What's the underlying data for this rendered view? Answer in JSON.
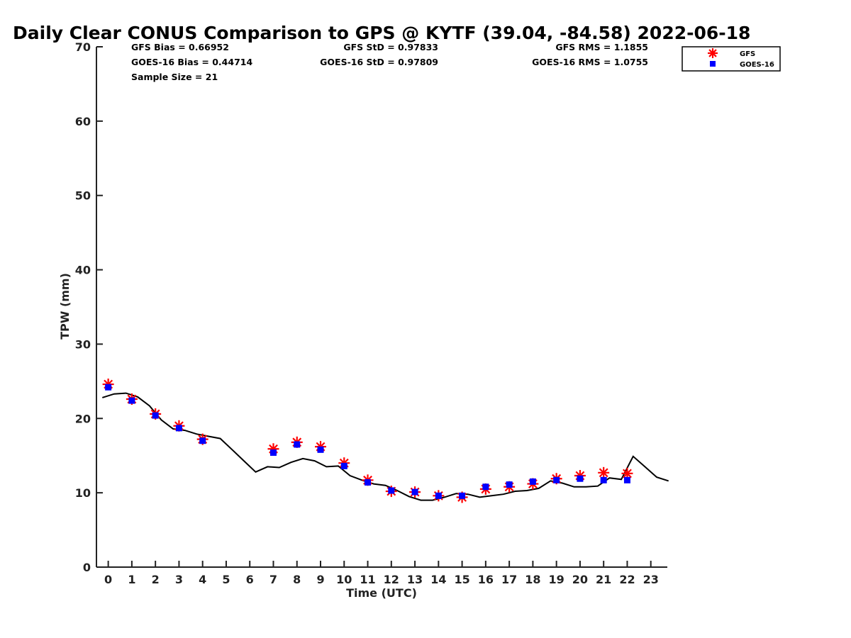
{
  "chart_data": {
    "type": "scatter",
    "title": "Daily Clear CONUS Comparison to GPS @ KYTF (39.04, -84.58) 2022-06-18",
    "xlabel": "Time (UTC)",
    "ylabel": "TPW (mm)",
    "xlim": [
      -0.5,
      23.7
    ],
    "ylim": [
      0,
      70
    ],
    "x_ticks": [
      0,
      1,
      2,
      3,
      4,
      5,
      6,
      7,
      8,
      9,
      10,
      11,
      12,
      13,
      14,
      15,
      16,
      17,
      18,
      19,
      20,
      21,
      22,
      23
    ],
    "y_ticks": [
      0,
      10,
      20,
      30,
      40,
      50,
      60,
      70
    ],
    "grid": false,
    "legend_position": "top-right",
    "stats": {
      "gfs_bias": "GFS Bias = 0.66952",
      "goes_bias": "GOES-16 Bias = 0.44714",
      "sample_size": "Sample Size = 21",
      "gfs_std": "GFS StD = 0.97833",
      "goes_std": "GOES-16 StD = 0.97809",
      "gfs_rms": "GFS RMS = 1.1855",
      "goes_rms": "GOES-16 RMS = 1.0755"
    },
    "series": [
      {
        "name": "GFS",
        "marker": "asterisk",
        "color": "#ff0000",
        "points": [
          [
            0,
            24.6
          ],
          [
            1,
            22.6
          ],
          [
            2,
            20.6
          ],
          [
            3,
            19.0
          ],
          [
            4,
            17.2
          ],
          [
            7,
            15.9
          ],
          [
            8,
            16.8
          ],
          [
            9,
            16.2
          ],
          [
            10,
            14.0
          ],
          [
            11,
            11.7
          ],
          [
            12,
            10.2
          ],
          [
            13,
            10.1
          ],
          [
            14,
            9.6
          ],
          [
            15,
            9.4
          ],
          [
            16,
            10.5
          ],
          [
            17,
            10.8
          ],
          [
            18,
            11.2
          ],
          [
            19,
            11.9
          ],
          [
            20,
            12.3
          ],
          [
            21,
            12.7
          ],
          [
            22,
            12.6
          ]
        ]
      },
      {
        "name": "GOES-16",
        "marker": "square",
        "color": "#0000ff",
        "points": [
          [
            0,
            24.2
          ],
          [
            1,
            22.4
          ],
          [
            2,
            20.4
          ],
          [
            3,
            18.7
          ],
          [
            4,
            17.0
          ],
          [
            7,
            15.4
          ],
          [
            8,
            16.5
          ],
          [
            9,
            15.8
          ],
          [
            10,
            13.6
          ],
          [
            11,
            11.4
          ],
          [
            12,
            10.3
          ],
          [
            13,
            10.1
          ],
          [
            14,
            9.6
          ],
          [
            15,
            9.6
          ],
          [
            16,
            10.8
          ],
          [
            17,
            11.1
          ],
          [
            18,
            11.5
          ],
          [
            19,
            11.7
          ],
          [
            20,
            11.9
          ],
          [
            21,
            11.7
          ],
          [
            22,
            11.7
          ]
        ]
      },
      {
        "name": "GPS",
        "marker": "line",
        "color": "#000000",
        "points": [
          [
            -0.25,
            22.8
          ],
          [
            0.25,
            23.3
          ],
          [
            0.75,
            23.4
          ],
          [
            1.25,
            22.9
          ],
          [
            1.75,
            21.7
          ],
          [
            2.25,
            19.8
          ],
          [
            2.75,
            18.6
          ],
          [
            3.25,
            18.4
          ],
          [
            3.75,
            17.9
          ],
          [
            4.25,
            17.6
          ],
          [
            4.75,
            17.3
          ],
          [
            5.25,
            15.8
          ],
          [
            5.75,
            14.3
          ],
          [
            6.25,
            12.8
          ],
          [
            6.75,
            13.5
          ],
          [
            7.25,
            13.4
          ],
          [
            7.75,
            14.1
          ],
          [
            8.25,
            14.6
          ],
          [
            8.75,
            14.3
          ],
          [
            9.25,
            13.5
          ],
          [
            9.75,
            13.6
          ],
          [
            10.25,
            12.3
          ],
          [
            10.75,
            11.7
          ],
          [
            11.25,
            11.2
          ],
          [
            11.75,
            11.0
          ],
          [
            12.25,
            10.3
          ],
          [
            12.75,
            9.5
          ],
          [
            13.25,
            9.0
          ],
          [
            13.75,
            9.0
          ],
          [
            14.25,
            9.4
          ],
          [
            14.75,
            9.9
          ],
          [
            15.25,
            9.8
          ],
          [
            15.75,
            9.4
          ],
          [
            16.25,
            9.6
          ],
          [
            16.75,
            9.8
          ],
          [
            17.25,
            10.2
          ],
          [
            17.75,
            10.3
          ],
          [
            18.25,
            10.6
          ],
          [
            18.75,
            11.6
          ],
          [
            19.25,
            11.3
          ],
          [
            19.75,
            10.8
          ],
          [
            20.25,
            10.8
          ],
          [
            20.75,
            10.9
          ],
          [
            21.25,
            12.0
          ],
          [
            21.75,
            11.8
          ],
          [
            22.25,
            14.9
          ],
          [
            22.75,
            13.5
          ],
          [
            23.25,
            12.1
          ],
          [
            23.75,
            11.6
          ]
        ]
      }
    ]
  }
}
